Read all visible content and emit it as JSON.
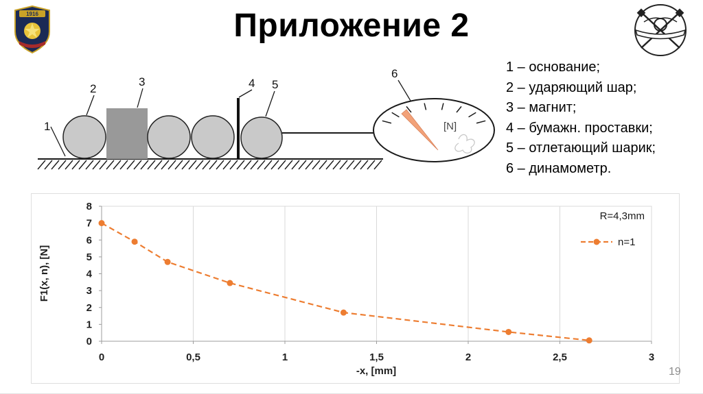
{
  "slide": {
    "title": "Приложение 2",
    "page_number": "19"
  },
  "emblems": {
    "left_banner_text": "1916"
  },
  "diagram": {
    "callout_labels": [
      "1",
      "2",
      "3",
      "4",
      "5",
      "6"
    ],
    "dynamometer_unit": "[N]",
    "legend_lines": [
      "1 – основание;",
      "2 – ударяющий шар;",
      "3 – магнит;",
      "4 – бумажн. проставки;",
      "5 – отлетающий шарик;",
      "6 – динамометр."
    ]
  },
  "chart_data": {
    "type": "line",
    "title": "R=4,3mm",
    "xlabel": "-x, [mm]",
    "ylabel": "F1(x, n), [N]",
    "xlim": [
      0,
      3
    ],
    "ylim": [
      0,
      8
    ],
    "x_ticks": [
      "0",
      "0,5",
      "1",
      "1,5",
      "2",
      "2,5",
      "3"
    ],
    "y_ticks": [
      0,
      1,
      2,
      3,
      4,
      5,
      6,
      7,
      8
    ],
    "grid": "vertical-only",
    "legend_position": "top-right",
    "series_color": "#ED7D31",
    "line_style": "dashed",
    "marker": "circle",
    "series": [
      {
        "name": "n=1",
        "x": [
          0,
          0.18,
          0.36,
          0.7,
          1.32,
          2.22,
          2.66
        ],
        "y": [
          7.0,
          5.9,
          4.7,
          3.45,
          1.7,
          0.55,
          0.05
        ]
      }
    ]
  }
}
